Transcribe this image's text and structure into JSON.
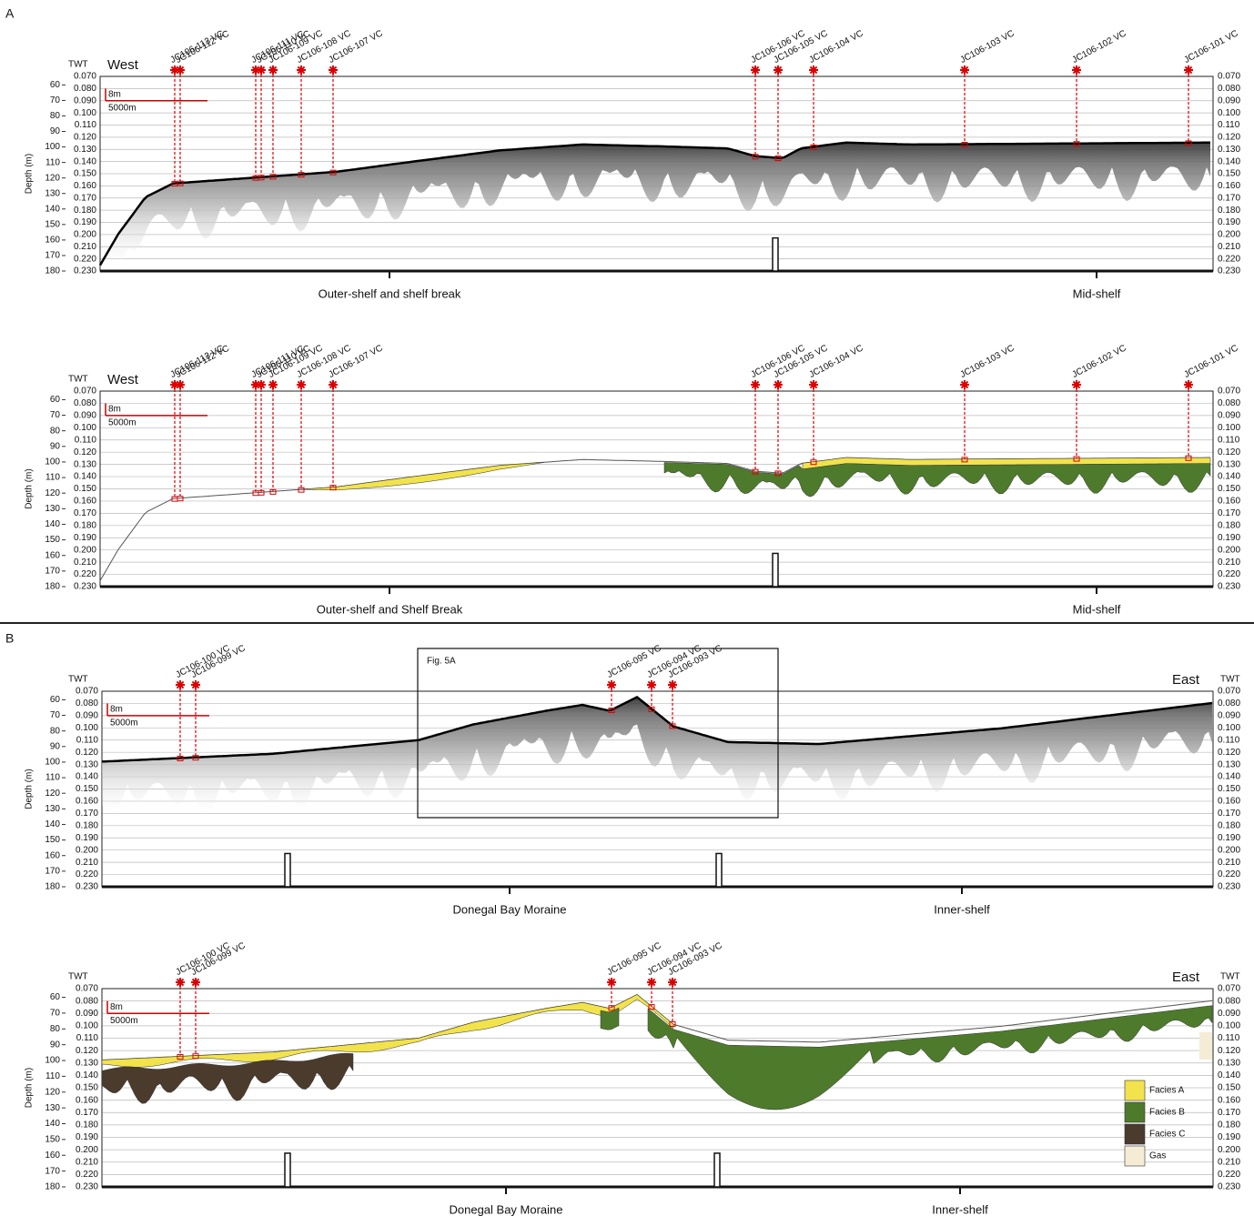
{
  "axes": {
    "twt_label": "TWT",
    "depth_label": "Depth (m)",
    "depth_ticks": [
      60,
      70,
      80,
      90,
      100,
      110,
      120,
      130,
      140,
      150,
      160,
      170,
      180
    ],
    "twt_ticks": [
      "0.070",
      "0.080",
      "0.090",
      "0.100",
      "0.110",
      "0.120",
      "0.130",
      "0.140",
      "0.150",
      "0.160",
      "0.170",
      "0.180",
      "0.190",
      "0.200",
      "0.210",
      "0.220",
      "0.230"
    ],
    "scale_v": "8m",
    "scale_h": "5000m"
  },
  "panels": [
    {
      "label": "A",
      "direction": "West",
      "cores": [
        "JC106-113 VC",
        "JC106-112 VC",
        "JC106-111 VC",
        "JC106-110 VC",
        "JC106-109 VC",
        "JC106-108 VC",
        "JC106-107 VC",
        "JC106-106 VC",
        "JC106-105 VC",
        "JC106-104 VC",
        "JC106-103 VC",
        "JC106-102 VC",
        "JC106-101 VC"
      ],
      "profiles": [
        {
          "regions": [
            "Outer-shelf and shelf break",
            "Mid-shelf"
          ]
        },
        {
          "regions": [
            "Outer-shelf and Shelf Break",
            "Mid-shelf"
          ]
        }
      ]
    },
    {
      "label": "B",
      "direction": "East",
      "box_label": "Fig. 5A",
      "cores": [
        "JC106-100 VC",
        "JC106-099 VC",
        "JC106-095 VC",
        "JC106-094 VC",
        "JC106-093 VC"
      ],
      "profiles": [
        {
          "regions": [
            "Donegal Bay Moraine",
            "Inner-shelf"
          ]
        },
        {
          "regions": [
            "Donegal Bay Moraine",
            "Inner-shelf"
          ]
        }
      ]
    }
  ],
  "legend": [
    "Facies A",
    "Facies B",
    "Facies C",
    "Gas"
  ]
}
